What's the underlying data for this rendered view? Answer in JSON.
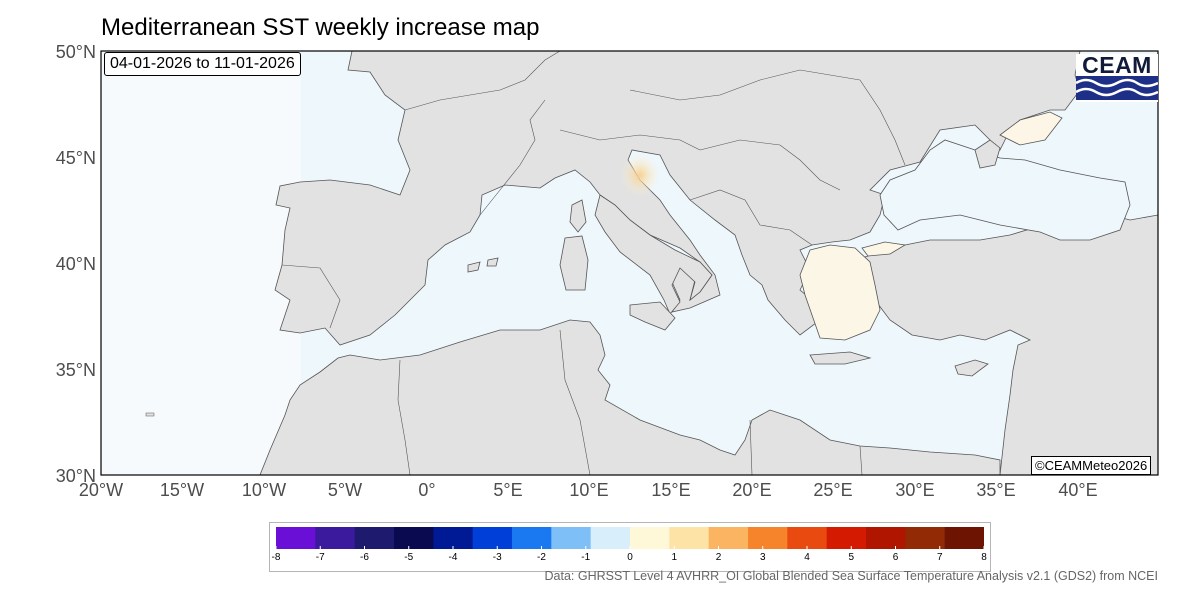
{
  "title": "Mediterranean SST weekly increase map",
  "date_range": "04-01-2026 to 11-01-2026",
  "copyright": "©CEAMMeteo2026",
  "logo_text": "CEAM",
  "credit": "Data: GHRSST Level 4 AVHRR_OI Global Blended Sea Surface Temperature Analysis v2.1 (GDS2) from NCEI",
  "map": {
    "lon_range": [
      -20,
      45
    ],
    "lat_range": [
      30,
      50
    ],
    "lat_ticks": [
      "50°N",
      "45°N",
      "40°N",
      "35°N",
      "30°N"
    ],
    "lon_ticks": [
      "20°W",
      "15°W",
      "10°W",
      "5°W",
      "0°",
      "5°E",
      "10°E",
      "15°E",
      "20°E",
      "25°E",
      "30°E",
      "35°E",
      "40°E"
    ],
    "land_color": "#e2e2e2",
    "coast_color": "#555555",
    "sea_color": "#eef7fc"
  },
  "colorbar": {
    "ticks": [
      "-8",
      "-7",
      "-6",
      "-5",
      "-4",
      "-3",
      "-2",
      "-1",
      "0",
      "1",
      "2",
      "3",
      "4",
      "5",
      "6",
      "7",
      "8"
    ],
    "colors": [
      "#6a0fd6",
      "#3c1a9e",
      "#1e1a6e",
      "#0a0a50",
      "#001a96",
      "#0040d8",
      "#1a78f0",
      "#7fbff7",
      "#d8eefb",
      "#fff8d8",
      "#fde3a6",
      "#fbb562",
      "#f5842a",
      "#e84a10",
      "#d41a00",
      "#b01500",
      "#922a05",
      "#6e1403"
    ]
  }
}
